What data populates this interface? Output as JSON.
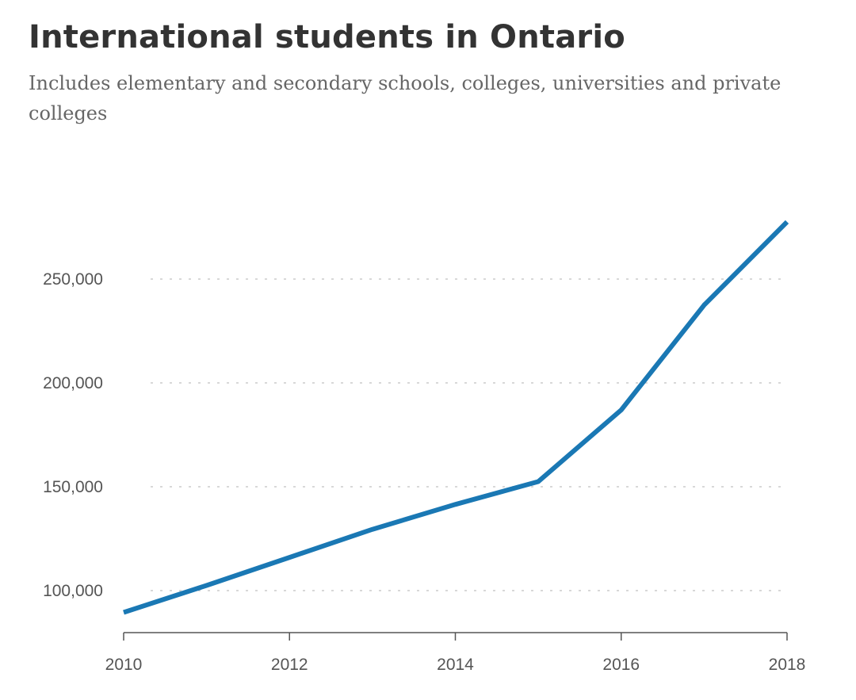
{
  "chart_data": {
    "type": "line",
    "title": "International students in Ontario",
    "subtitle": "Includes elementary and secondary schools, colleges, universities and private colleges",
    "xlabel": "",
    "ylabel": "",
    "x": [
      2010,
      2011,
      2012,
      2013,
      2014,
      2015,
      2016,
      2017,
      2018
    ],
    "series": [
      {
        "values": [
          89500,
          102500,
          116000,
          129500,
          141500,
          152500,
          187000,
          237500,
          277500
        ]
      }
    ],
    "xlim": [
      2010,
      2018
    ],
    "ylim": [
      80000,
      280000
    ],
    "x_ticks": [
      2010,
      2012,
      2014,
      2016,
      2018
    ],
    "x_tick_labels": [
      "2010",
      "2012",
      "2014",
      "2016",
      "2018"
    ],
    "y_ticks": [
      100000,
      150000,
      200000,
      250000
    ],
    "y_tick_labels": [
      "100,000",
      "150,000",
      "200,000",
      "250,000"
    ],
    "grid": "horizontal dotted",
    "legend": "none",
    "colors": {
      "line": "#1a78b4",
      "grid": "#cccccc",
      "axis": "#555555",
      "title": "#333333",
      "subtitle": "#666666"
    }
  }
}
